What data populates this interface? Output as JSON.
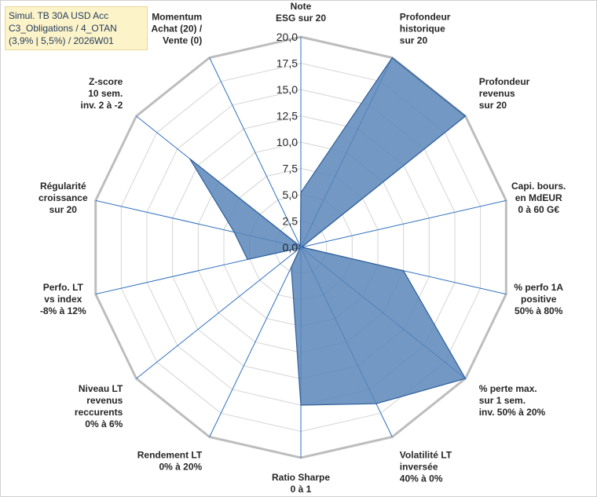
{
  "title": {
    "lines": [
      "Simul. TB 30A USD Acc",
      "C3_Obligations / 4_OTAN",
      "(3,9% | 5,5%) / 2026W01"
    ]
  },
  "chart_data": {
    "type": "radar",
    "rmax": 20,
    "tick_step": 2.5,
    "tick_labels": [
      "0,0",
      "2,5",
      "5,0",
      "7,5",
      "10,0",
      "12,5",
      "15,0",
      "17,5",
      "20,0"
    ],
    "grid": true,
    "axes": [
      {
        "lines": [
          "Note",
          "ESG sur 20"
        ],
        "value": 5.2
      },
      {
        "lines": [
          "Profondeur",
          "historique",
          "sur 20"
        ],
        "value": 20
      },
      {
        "lines": [
          "Profondeur",
          "revenus",
          "sur 20"
        ],
        "value": 20
      },
      {
        "lines": [
          "Capi. bours.",
          "en MdEUR",
          "0 à 60 G€"
        ],
        "value": 0.1
      },
      {
        "lines": [
          "% perfo 1A",
          "positive",
          "50% à 80%"
        ],
        "value": 10
      },
      {
        "lines": [
          "% perte max.",
          "sur 1 sem.",
          "inv. 50% à 20%"
        ],
        "value": 20
      },
      {
        "lines": [
          "Volatilité LT",
          "inversée",
          "40% à 0%"
        ],
        "value": 16.5
      },
      {
        "lines": [
          "Ratio Sharpe",
          "0 à 1"
        ],
        "value": 15
      },
      {
        "lines": [
          "Rendement LT",
          "0% à 20%"
        ],
        "value": 2.1
      },
      {
        "lines": [
          "Niveau LT",
          "revenus",
          "reccurents",
          "0% à 6%"
        ],
        "value": 0.1
      },
      {
        "lines": [
          "Perfo. LT",
          "vs index",
          "-8% à 12%"
        ],
        "value": 5.2
      },
      {
        "lines": [
          "Régularité",
          "croissance",
          "sur 20"
        ],
        "value": 6.5
      },
      {
        "lines": [
          "Z-score",
          "10 sem.",
          "inv. 2 à -2"
        ],
        "value": 13.5
      },
      {
        "lines": [
          "Momentum",
          "Achat (20) /",
          "Vente (0)"
        ],
        "value": 0.1
      }
    ],
    "colors": {
      "fill": "#5b86b8",
      "stroke": "#2f5f9a",
      "spoke": "#2f6fc0",
      "grid": "#d4d4d4",
      "outer": "#bdbdbd"
    }
  }
}
